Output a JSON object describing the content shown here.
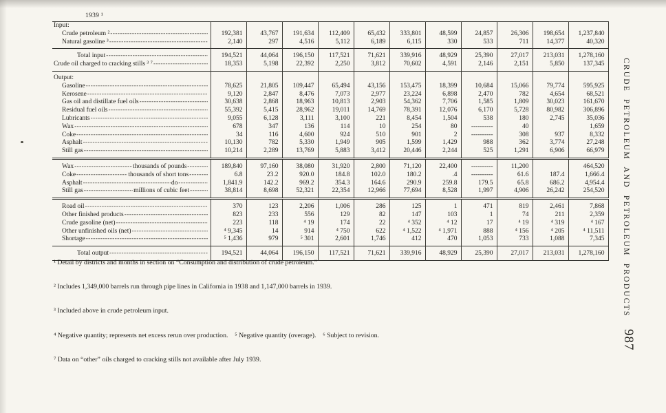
{
  "page": {
    "year_header": "1939 ¹",
    "running_head": "CRUDE PETROLEUM AND PETROLEUM PRODUCTS",
    "page_number": "987"
  },
  "table": {
    "rows": [
      {
        "type": "section",
        "label": "Input:"
      },
      {
        "type": "data",
        "indent": 1,
        "label": "Crude petroleum ²",
        "cells": [
          "192,381",
          "43,767",
          "191,634",
          "112,409",
          "65,432",
          "333,801",
          "48,599",
          "24,857",
          "26,306",
          "198,654",
          "1,237,840"
        ]
      },
      {
        "type": "data",
        "indent": 1,
        "label": "Natural gasoline ³",
        "cells": [
          "2,140",
          "297",
          "4,516",
          "5,112",
          "6,189",
          "6,115",
          "330",
          "533",
          "711",
          "14,377",
          "40,320"
        ]
      },
      {
        "type": "data",
        "indent": 2,
        "rule": "single",
        "label": "Total input",
        "cells": [
          "194,521",
          "44,064",
          "196,150",
          "117,521",
          "71,621",
          "339,916",
          "48,929",
          "25,390",
          "27,017",
          "213,031",
          "1,278,160"
        ]
      },
      {
        "type": "data",
        "indent": 0,
        "label": "Crude oil charged to cracking stills ³ ⁷",
        "cells": [
          "18,353",
          "5,198",
          "22,392",
          "2,250",
          "3,812",
          "70,602",
          "4,591",
          "2,146",
          "2,151",
          "5,850",
          "137,345"
        ]
      },
      {
        "type": "section",
        "rule": "single",
        "label": "Output:"
      },
      {
        "type": "data",
        "indent": 1,
        "label": "Gasoline",
        "cells": [
          "78,625",
          "21,805",
          "109,447",
          "65,494",
          "43,156",
          "153,475",
          "18,399",
          "10,684",
          "15,066",
          "79,774",
          "595,925"
        ]
      },
      {
        "type": "data",
        "indent": 1,
        "label": "Kerosene",
        "cells": [
          "9,120",
          "2,847",
          "8,476",
          "7,073",
          "2,977",
          "23,224",
          "6,898",
          "2,470",
          "782",
          "4,654",
          "68,521"
        ]
      },
      {
        "type": "data",
        "indent": 1,
        "label": "Gas oil and distillate fuel oils",
        "cells": [
          "30,638",
          "2,868",
          "18,963",
          "10,813",
          "2,903",
          "54,362",
          "7,706",
          "1,585",
          "1,809",
          "30,023",
          "161,670"
        ]
      },
      {
        "type": "data",
        "indent": 1,
        "label": "Residual fuel oils",
        "cells": [
          "55,392",
          "5,415",
          "28,962",
          "19,011",
          "14,769",
          "78,391",
          "12,076",
          "6,170",
          "5,728",
          "80,982",
          "306,896"
        ]
      },
      {
        "type": "data",
        "indent": 1,
        "label": "Lubricants",
        "cells": [
          "9,055",
          "6,128",
          "3,111",
          "3,100",
          "221",
          "8,454",
          "1,504",
          "538",
          "180",
          "2,745",
          "35,036"
        ]
      },
      {
        "type": "data",
        "indent": 1,
        "label": "Wax",
        "cells": [
          "678",
          "347",
          "136",
          "114",
          "10",
          "254",
          "80",
          "----------",
          "40",
          "",
          "1,659"
        ]
      },
      {
        "type": "data",
        "indent": 1,
        "label": "Coke",
        "cells": [
          "34",
          "116",
          "4,600",
          "924",
          "510",
          "901",
          "2",
          "----------",
          "308",
          "937",
          "8,332"
        ]
      },
      {
        "type": "data",
        "indent": 1,
        "label": "Asphalt",
        "cells": [
          "10,130",
          "782",
          "5,330",
          "1,949",
          "905",
          "1,599",
          "1,429",
          "988",
          "362",
          "3,774",
          "27,248"
        ]
      },
      {
        "type": "data",
        "indent": 1,
        "label": "Still gas",
        "cells": [
          "10,214",
          "2,289",
          "13,769",
          "5,883",
          "3,412",
          "20,446",
          "2,244",
          "525",
          "1,291",
          "6,906",
          "66,979"
        ]
      },
      {
        "type": "data",
        "indent": 1,
        "rule": "double",
        "label": "Wax",
        "unit": "thousands of pounds",
        "cells": [
          "189,840",
          "97,160",
          "38,080",
          "31,920",
          "2,800",
          "71,120",
          "22,400",
          "----------",
          "11,200",
          "",
          "464,520"
        ]
      },
      {
        "type": "data",
        "indent": 1,
        "label": "Coke",
        "unit": "thousands of short tons",
        "cells": [
          "6.8",
          "23.2",
          "920.0",
          "184.8",
          "102.0",
          "180.2",
          ".4",
          "----------",
          "61.6",
          "187.4",
          "1,666.4"
        ]
      },
      {
        "type": "data",
        "indent": 1,
        "label": "Asphalt",
        "unit": "do",
        "cells": [
          "1,841.9",
          "142.2",
          "969.2",
          "354.3",
          "164.6",
          "290.9",
          "259.8",
          "179.5",
          "65.8",
          "686.2",
          "4,954.4"
        ]
      },
      {
        "type": "data",
        "indent": 1,
        "label": "Still gas",
        "unit": "millions of cubic feet",
        "cells": [
          "38,814",
          "8,698",
          "52,321",
          "22,354",
          "12,966",
          "77,694",
          "8,528",
          "1,997",
          "4,906",
          "26,242",
          "254,520"
        ]
      },
      {
        "type": "data",
        "indent": 1,
        "rule": "double",
        "label": "Road oil",
        "cells": [
          "370",
          "123",
          "2,206",
          "1,006",
          "286",
          "125",
          "1",
          "471",
          "819",
          "2,461",
          "7,868"
        ]
      },
      {
        "type": "data",
        "indent": 1,
        "label": "Other finished products",
        "cells": [
          "823",
          "233",
          "556",
          "129",
          "82",
          "147",
          "103",
          "1",
          "74",
          "211",
          "2,359"
        ]
      },
      {
        "type": "data",
        "indent": 1,
        "label": "Crude gasoline (net)",
        "cells": [
          "223",
          "118",
          "⁴ 19",
          "174",
          "22",
          "⁴ 352",
          "⁴ 12",
          "17",
          "⁴ 19",
          "⁴ 319",
          "⁴ 167"
        ]
      },
      {
        "type": "data",
        "indent": 1,
        "label": "Other unfinished oils (net)",
        "cells": [
          "⁴ 9,345",
          "14",
          "914",
          "⁴ 750",
          "622",
          "⁴ 1,522",
          "⁴ 1,971",
          "888",
          "⁴ 156",
          "⁴ 205",
          "⁴ 11,511"
        ]
      },
      {
        "type": "data",
        "indent": 1,
        "label": "Shortage",
        "cells": [
          "⁵ 1,436",
          "979",
          "⁵ 301",
          "2,601",
          "1,746",
          "412",
          "470",
          "1,053",
          "733",
          "1,088",
          "7,345"
        ]
      },
      {
        "type": "data",
        "indent": 2,
        "rule": "single",
        "label": "Total output",
        "cells": [
          "194,521",
          "44,064",
          "196,150",
          "117,521",
          "71,621",
          "339,916",
          "48,929",
          "25,390",
          "27,017",
          "213,031",
          "1,278,160"
        ]
      }
    ]
  },
  "footnotes": [
    "¹ Detail by districts and months in section on “Consumption and distribution of crude petroleum.”",
    "² Includes 1,349,000 barrels run through pipe lines in California in 1938 and 1,147,000 barrels in 1939.",
    "³ Included above in crude petroleum input.",
    "⁴ Negative quantity; represents net excess rerun over production.    ⁵ Negative quantity (overage).    ⁶ Subject to revision.",
    "⁷ Data on “other” oils charged to cracking stills not available after July 1939."
  ]
}
